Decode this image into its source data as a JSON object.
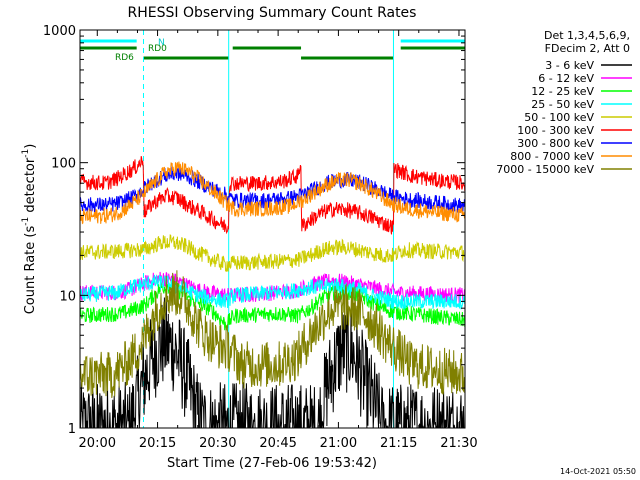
{
  "chart_data": {
    "type": "line",
    "title": "RHESSI Observing Summary Count Rates",
    "xlabel": "Start Time (27-Feb-06 19:53:42)",
    "ylabel_main": "Count Rate (s",
    "ylabel_sup1": "-1",
    "ylabel_mid": " detector",
    "ylabel_sup2": "-1",
    "ylabel_end": ")",
    "yscale": "log",
    "ylim": [
      1,
      1000
    ],
    "xlim_minutes": [
      -4.3,
      91.5
    ],
    "x_tick_labels": [
      "20:00",
      "20:15",
      "20:30",
      "20:45",
      "21:00",
      "21:15",
      "21:30"
    ],
    "x_tick_minutes": [
      0,
      15,
      30,
      45,
      60,
      75,
      90
    ],
    "y_tick_labels": [
      "1",
      "10",
      "100",
      "1000"
    ],
    "y_tick_values": [
      1,
      10,
      100,
      1000
    ],
    "legend_header": [
      "Det 1,3,4,5,6,9,",
      "FDecim 2, Att 0"
    ],
    "date_stamp": "14-Oct-2021 05:50",
    "flag_labels": {
      "n": "N",
      "rd0": "RD0",
      "rd6": "RD6"
    },
    "flags": {
      "n": {
        "color": "#00ffff",
        "intervals_min": [
          [
            -4.3,
            9.8
          ],
          [
            75.5,
            91.5
          ]
        ]
      },
      "rd0": {
        "color": "#008000",
        "intervals_min": [
          [
            -4.3,
            9.8
          ],
          [
            33.7,
            50.7
          ],
          [
            75.5,
            91.5
          ]
        ]
      },
      "rd6": {
        "color": "#008000",
        "intervals_min": [
          [
            11.5,
            32.7
          ],
          [
            50.7,
            73.7
          ]
        ]
      }
    },
    "saa_boundaries_min": [
      -4.3,
      11.5,
      32.7,
      73.7,
      91.5
    ],
    "series": [
      {
        "name": "3 - 6 keV",
        "color": "#000000",
        "points": [
          [
            -4.3,
            1
          ],
          [
            8,
            1
          ],
          [
            11,
            2
          ],
          [
            13,
            3
          ],
          [
            15,
            4
          ],
          [
            17,
            4.5
          ],
          [
            19,
            4
          ],
          [
            21,
            3
          ],
          [
            23,
            2
          ],
          [
            25,
            1.2
          ],
          [
            27,
            1
          ],
          [
            55,
            1
          ],
          [
            57,
            2
          ],
          [
            59,
            3
          ],
          [
            61,
            4
          ],
          [
            63,
            4
          ],
          [
            65,
            3
          ],
          [
            67,
            2
          ],
          [
            69,
            1.5
          ],
          [
            71,
            1
          ],
          [
            91.5,
            1
          ]
        ]
      },
      {
        "name": "6 - 12 keV",
        "color": "#ff00ff",
        "points": [
          [
            -4.3,
            10.5
          ],
          [
            5,
            10.5
          ],
          [
            8,
            11
          ],
          [
            11,
            12
          ],
          [
            14,
            13
          ],
          [
            16,
            13.5
          ],
          [
            19,
            13
          ],
          [
            22,
            12
          ],
          [
            25,
            11
          ],
          [
            28,
            10.5
          ],
          [
            32,
            10
          ],
          [
            34,
            10
          ],
          [
            45,
            10.5
          ],
          [
            50,
            11
          ],
          [
            53,
            12
          ],
          [
            56,
            12.5
          ],
          [
            59,
            13
          ],
          [
            62,
            12.5
          ],
          [
            65,
            12
          ],
          [
            68,
            11.5
          ],
          [
            71,
            11
          ],
          [
            74,
            10.5
          ],
          [
            91.5,
            10
          ]
        ]
      },
      {
        "name": "12 - 25 keV",
        "color": "#00ff00",
        "points": [
          [
            -4.3,
            7
          ],
          [
            6,
            7.3
          ],
          [
            9,
            7.8
          ],
          [
            12,
            8.5
          ],
          [
            14,
            10
          ],
          [
            16,
            11.5
          ],
          [
            18,
            11.8
          ],
          [
            20,
            11
          ],
          [
            23,
            9.5
          ],
          [
            26,
            8.5
          ],
          [
            29,
            7.5
          ],
          [
            32,
            6
          ],
          [
            34,
            7
          ],
          [
            45,
            7.3
          ],
          [
            50,
            7
          ],
          [
            53,
            8
          ],
          [
            56,
            9.5
          ],
          [
            59,
            10.5
          ],
          [
            62,
            10.5
          ],
          [
            65,
            10
          ],
          [
            68,
            9
          ],
          [
            71,
            8
          ],
          [
            74,
            7.5
          ],
          [
            91.5,
            6.5
          ]
        ]
      },
      {
        "name": "25 - 50 keV",
        "color": "#00ffff",
        "points": [
          [
            -4.3,
            10
          ],
          [
            5,
            10.5
          ],
          [
            8,
            11.5
          ],
          [
            11,
            12
          ],
          [
            14,
            12.5
          ],
          [
            16,
            12.5
          ],
          [
            19,
            12
          ],
          [
            22,
            11
          ],
          [
            25,
            10
          ],
          [
            28,
            9.5
          ],
          [
            32,
            9
          ],
          [
            34,
            10
          ],
          [
            45,
            10.5
          ],
          [
            50,
            11
          ],
          [
            53,
            11.5
          ],
          [
            56,
            11.5
          ],
          [
            59,
            12
          ],
          [
            62,
            11.5
          ],
          [
            65,
            11
          ],
          [
            68,
            10
          ],
          [
            71,
            9.5
          ],
          [
            74,
            9
          ],
          [
            91.5,
            9
          ]
        ]
      },
      {
        "name": "50 - 100 keV",
        "color": "#cccc00",
        "points": [
          [
            -4.3,
            21
          ],
          [
            6,
            21.5
          ],
          [
            9,
            22
          ],
          [
            11.5,
            22
          ],
          [
            13,
            23
          ],
          [
            16,
            25
          ],
          [
            19,
            25
          ],
          [
            22,
            23.5
          ],
          [
            25,
            21
          ],
          [
            28,
            19
          ],
          [
            32,
            17
          ],
          [
            34,
            17.5
          ],
          [
            45,
            18
          ],
          [
            50,
            18.5
          ],
          [
            53,
            20
          ],
          [
            56,
            22
          ],
          [
            59,
            23
          ],
          [
            62,
            23
          ],
          [
            65,
            22
          ],
          [
            68,
            21
          ],
          [
            71,
            20
          ],
          [
            74,
            20
          ],
          [
            76,
            22
          ],
          [
            91.5,
            21
          ]
        ]
      },
      {
        "name": "100 - 300 keV",
        "color": "#ff0000",
        "points": [
          [
            -4.3,
            72
          ],
          [
            2,
            70
          ],
          [
            5,
            76
          ],
          [
            9,
            90
          ],
          [
            11.5,
            105
          ],
          [
            11.6,
            42
          ],
          [
            14,
            50
          ],
          [
            17,
            56
          ],
          [
            20,
            54
          ],
          [
            23,
            47
          ],
          [
            26,
            42
          ],
          [
            29,
            37
          ],
          [
            32,
            33
          ],
          [
            32.7,
            33
          ],
          [
            32.8,
            70
          ],
          [
            40,
            70
          ],
          [
            46,
            72
          ],
          [
            50,
            80
          ],
          [
            50.7,
            105
          ],
          [
            50.8,
            33
          ],
          [
            53,
            37
          ],
          [
            56,
            42
          ],
          [
            59,
            45
          ],
          [
            62,
            44
          ],
          [
            65,
            42
          ],
          [
            69,
            38
          ],
          [
            73,
            33
          ],
          [
            73.7,
            33
          ],
          [
            73.8,
            90
          ],
          [
            78,
            80
          ],
          [
            84,
            74
          ],
          [
            91.5,
            70
          ]
        ]
      },
      {
        "name": "300 - 800 keV",
        "color": "#0000ff",
        "points": [
          [
            -4.3,
            48
          ],
          [
            3,
            48
          ],
          [
            6,
            50
          ],
          [
            9,
            55
          ],
          [
            11.5,
            63
          ],
          [
            14,
            72
          ],
          [
            17,
            80
          ],
          [
            20,
            83
          ],
          [
            23,
            78
          ],
          [
            26,
            70
          ],
          [
            29,
            63
          ],
          [
            32,
            57
          ],
          [
            34,
            52
          ],
          [
            42,
            52
          ],
          [
            48,
            54
          ],
          [
            51,
            57
          ],
          [
            54,
            63
          ],
          [
            57,
            70
          ],
          [
            60,
            74
          ],
          [
            63,
            74
          ],
          [
            66,
            70
          ],
          [
            69,
            64
          ],
          [
            72,
            58
          ],
          [
            74,
            55
          ],
          [
            77,
            53
          ],
          [
            84,
            50
          ],
          [
            91.5,
            47
          ]
        ]
      },
      {
        "name": "800 - 7000 keV",
        "color": "#ff8c00",
        "points": [
          [
            -4.3,
            39
          ],
          [
            3,
            40
          ],
          [
            6,
            43
          ],
          [
            9,
            50
          ],
          [
            11.5,
            58
          ],
          [
            14,
            70
          ],
          [
            17,
            85
          ],
          [
            20,
            92
          ],
          [
            23,
            85
          ],
          [
            26,
            72
          ],
          [
            29,
            60
          ],
          [
            32,
            50
          ],
          [
            34,
            45
          ],
          [
            42,
            45
          ],
          [
            48,
            47
          ],
          [
            51,
            52
          ],
          [
            54,
            60
          ],
          [
            57,
            68
          ],
          [
            60,
            74
          ],
          [
            63,
            74
          ],
          [
            66,
            68
          ],
          [
            69,
            60
          ],
          [
            72,
            52
          ],
          [
            74,
            48
          ],
          [
            77,
            45
          ],
          [
            84,
            42
          ],
          [
            91.5,
            40
          ]
        ]
      },
      {
        "name": "7000 - 15000 keV",
        "color": "#808000",
        "points": [
          [
            -4.3,
            2.5
          ],
          [
            4,
            2.5
          ],
          [
            7,
            3
          ],
          [
            9,
            3.5
          ],
          [
            11.5,
            4.5
          ],
          [
            13,
            6
          ],
          [
            15,
            8
          ],
          [
            17,
            10
          ],
          [
            19,
            10.5
          ],
          [
            21,
            10
          ],
          [
            23,
            8
          ],
          [
            25,
            6
          ],
          [
            27,
            5
          ],
          [
            30,
            4.2
          ],
          [
            32.7,
            4
          ],
          [
            36,
            3
          ],
          [
            45,
            3
          ],
          [
            50,
            3.5
          ],
          [
            52,
            4.5
          ],
          [
            55,
            6
          ],
          [
            58,
            8
          ],
          [
            61,
            8
          ],
          [
            64,
            8
          ],
          [
            67,
            7
          ],
          [
            70,
            5.5
          ],
          [
            72,
            4.5
          ],
          [
            74,
            4
          ],
          [
            78,
            3
          ],
          [
            91.5,
            2.5
          ]
        ]
      }
    ]
  }
}
